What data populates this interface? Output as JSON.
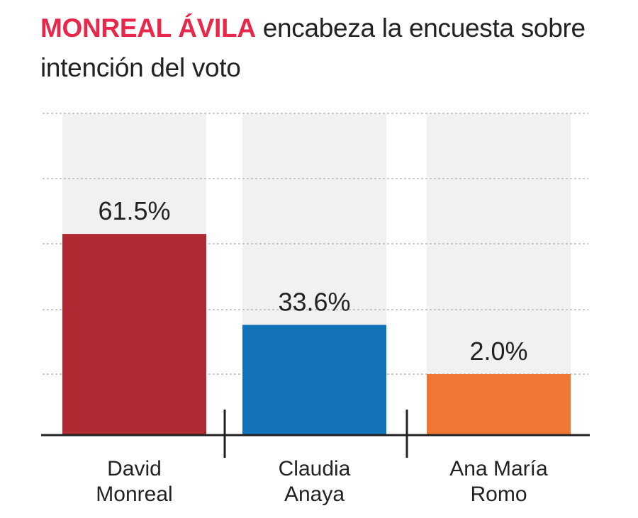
{
  "title": {
    "highlight": "MONREAL ÁVILA",
    "rest": " encabeza la encuesta sobre intención del voto"
  },
  "colors": {
    "highlight": "#e8284b",
    "track": "#f1f1f1",
    "grid": "#9a9a9a",
    "axis": "#222222"
  },
  "chart_data": {
    "type": "bar",
    "categories": [
      [
        "David",
        "Monreal"
      ],
      [
        "Claudia",
        "Anaya"
      ],
      [
        "Ana María",
        "Romo"
      ]
    ],
    "values": [
      61.5,
      33.6,
      2.0
    ],
    "value_labels": [
      "61.5%",
      "33.6%",
      "2.0%"
    ],
    "colors": [
      "#b02a33",
      "#1273b8",
      "#ee7733"
    ],
    "grid": true
  }
}
